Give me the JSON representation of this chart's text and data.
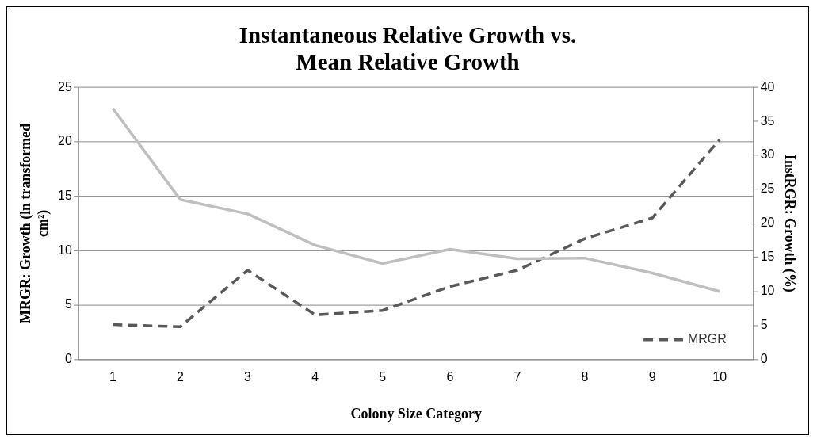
{
  "chart_data": {
    "type": "line",
    "title": "Instantaneous Relative Growth vs. Mean Relative Growth",
    "xlabel": "Colony Size Category",
    "ylabel": "MRGR: Growth (ln transformed cm²)",
    "y2label": "InstRGR: Growth (%)",
    "categories": [
      "1",
      "2",
      "3",
      "4",
      "5",
      "6",
      "7",
      "8",
      "9",
      "10"
    ],
    "series": [
      {
        "color": "#bfbfbf",
        "axis": "y2",
        "line_style": "solid",
        "values": [
          36.9,
          23.5,
          21.4,
          16.8,
          14.1,
          16.2,
          14.8,
          14.9,
          12.7,
          10.0
        ]
      },
      {
        "name": "MRGR",
        "color": "#595959",
        "line_style": "dashed",
        "values": [
          3.2,
          3.0,
          8.2,
          4.1,
          4.5,
          6.7,
          8.2,
          11.1,
          13.0,
          20.2
        ]
      }
    ],
    "ylim": [
      0,
      25
    ],
    "yticks": [
      0,
      5,
      10,
      15,
      20,
      25
    ],
    "y2lim": [
      0,
      40
    ],
    "y2ticks": [
      0,
      5,
      10,
      15,
      20,
      25,
      30,
      35,
      40
    ],
    "grid": "y",
    "legend": "bottom right",
    "marker": "none"
  }
}
